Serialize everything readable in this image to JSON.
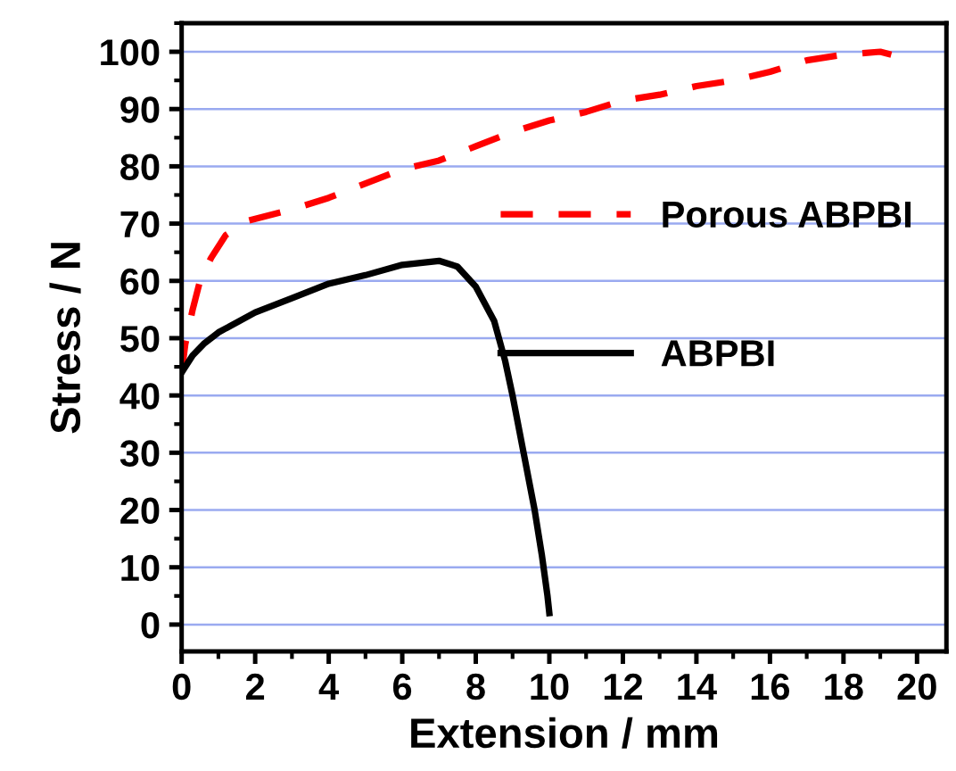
{
  "chart_data": {
    "type": "line",
    "xlabel": "Extension / mm",
    "ylabel": "Stress / N",
    "xlim": [
      0,
      20.8
    ],
    "ylim": [
      -4.7,
      105
    ],
    "xticks": [
      0,
      2,
      4,
      6,
      8,
      10,
      12,
      14,
      16,
      18,
      20
    ],
    "yticks": [
      0,
      10,
      20,
      30,
      40,
      50,
      60,
      70,
      80,
      90,
      100
    ],
    "grid": "y",
    "legend": "right",
    "series": [
      {
        "name": "Porous ABPBI",
        "color": "#ff0000",
        "line_style": "dashed",
        "x": [
          0,
          0.1,
          0.3,
          0.5,
          0.8,
          1.2,
          1.8,
          3,
          4,
          5,
          6,
          7,
          8,
          9,
          10,
          11,
          12,
          13,
          14,
          15,
          16,
          17,
          18,
          19,
          19.3
        ],
        "values": [
          44,
          49,
          55,
          60,
          64,
          68,
          70.5,
          72.5,
          74.5,
          77,
          79.5,
          81,
          83.5,
          86,
          88,
          89.5,
          91.5,
          92.5,
          94,
          95,
          96.5,
          98.5,
          99.5,
          100,
          99.5
        ]
      },
      {
        "name": "ABPBI",
        "color": "#000000",
        "line_style": "solid",
        "x": [
          0,
          0.1,
          0.3,
          0.6,
          1,
          2,
          3,
          4,
          5,
          6,
          7,
          7.5,
          8,
          8.5,
          8.8,
          9,
          9.3,
          9.6,
          9.8,
          9.95,
          10
        ],
        "values": [
          44,
          45,
          47,
          49,
          51,
          54.5,
          57,
          59.5,
          61,
          62.8,
          63.5,
          62.5,
          59,
          53,
          46,
          40,
          30,
          20,
          12,
          5,
          2
        ]
      }
    ]
  }
}
